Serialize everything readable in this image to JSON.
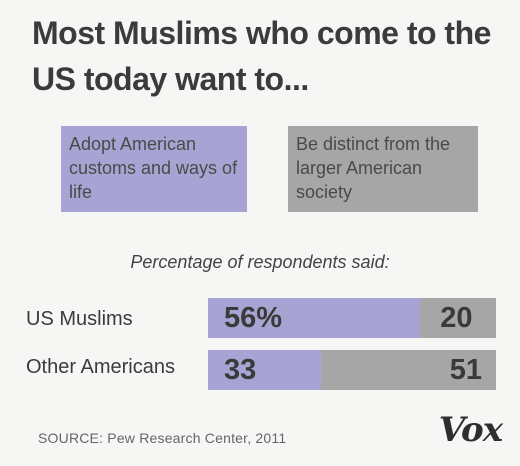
{
  "chart_data": {
    "type": "bar",
    "stacked": true,
    "orientation": "horizontal",
    "title": "Most Muslims who come to the US today want to...",
    "subtitle": "Percentage of respondents said:",
    "categories": [
      "US Muslims",
      "Other Americans"
    ],
    "series": [
      {
        "name": "Adopt American customs and ways of life",
        "values": [
          56,
          33
        ],
        "labels": [
          "56%",
          "33"
        ]
      },
      {
        "name": "Be distinct from the larger American society",
        "values": [
          20,
          51
        ],
        "labels": [
          "20",
          "51"
        ]
      }
    ],
    "colors": {
      "adopt": "#a7a3d2",
      "distinct": "#a6a6a6"
    },
    "xlim": [
      0,
      100
    ],
    "source": "SOURCE: Pew Research Center, 2011",
    "logo": "Vox"
  }
}
